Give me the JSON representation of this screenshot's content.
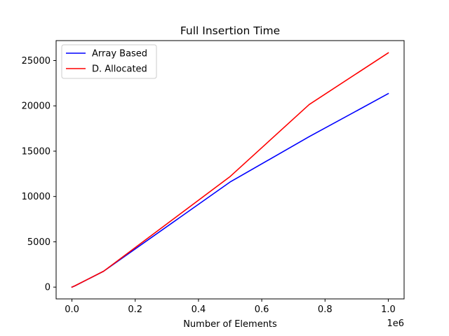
{
  "chart_data": {
    "type": "line",
    "title": "Full Insertion Time",
    "xlabel": "Number of Elements",
    "ylabel": "",
    "x_offset_label": "1e6",
    "x_ticks": [
      0,
      200000,
      400000,
      600000,
      800000,
      1000000
    ],
    "x_tick_labels": [
      "0.0",
      "0.2",
      "0.4",
      "0.6",
      "0.8",
      "1.0"
    ],
    "y_ticks": [
      0,
      5000,
      10000,
      15000,
      20000,
      25000
    ],
    "y_tick_labels": [
      "0",
      "5000",
      "10000",
      "15000",
      "20000",
      "25000"
    ],
    "xlim": [
      -50000,
      1050000
    ],
    "ylim": [
      -1300,
      27200
    ],
    "grid": false,
    "legend_position": "upper-left",
    "series": [
      {
        "name": "Array Based",
        "color": "#0000ff",
        "x": [
          0,
          10000,
          100000,
          500000,
          750000,
          1000000
        ],
        "y": [
          0,
          150,
          1750,
          11600,
          16600,
          21350
        ]
      },
      {
        "name": "D. Allocated",
        "color": "#ff0000",
        "x": [
          0,
          10000,
          100000,
          500000,
          750000,
          1000000
        ],
        "y": [
          0,
          160,
          1750,
          12200,
          20150,
          25850
        ]
      }
    ]
  }
}
